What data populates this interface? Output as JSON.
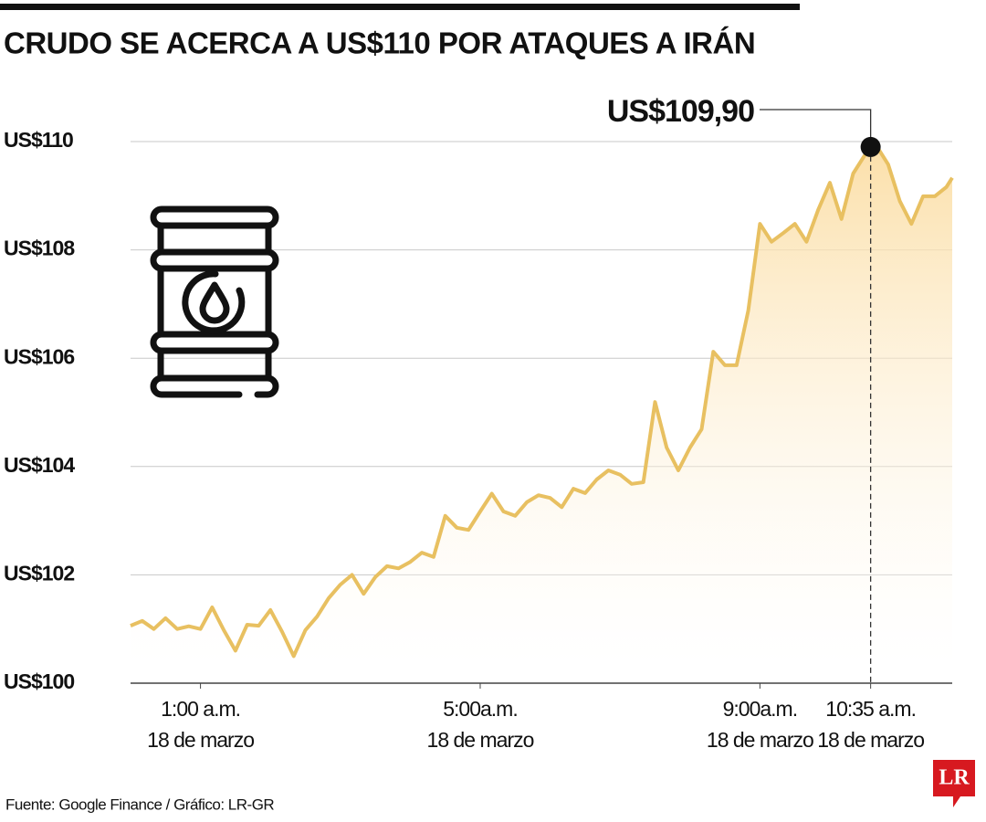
{
  "chart_data": {
    "type": "area",
    "title": "CRUDO SE ACERCA A US$110 POR ATAQUES A IRÁN",
    "source": "Fuente: Google Finance / Gráfico: LR-GR",
    "logo": "LR",
    "color": "#e8c061",
    "fill_color": "#fbdca0",
    "grid": true,
    "xlim": [
      0,
      705
    ],
    "ylim": [
      100,
      110
    ],
    "yticks": [
      {
        "value": 100,
        "label": "US$100"
      },
      {
        "value": 102,
        "label": "US$102"
      },
      {
        "value": 104,
        "label": "US$104"
      },
      {
        "value": 106,
        "label": "US$106"
      },
      {
        "value": 108,
        "label": "US$108"
      },
      {
        "value": 110,
        "label": "US$110"
      }
    ],
    "xticks": [
      {
        "value": 60,
        "label": [
          "1:00 a.m.",
          "18 de marzo"
        ]
      },
      {
        "value": 300,
        "label": [
          "5:00a.m.",
          "18 de marzo"
        ]
      },
      {
        "value": 540,
        "label": [
          "9:00a.m.",
          "18 de marzo"
        ]
      },
      {
        "value": 635,
        "label": [
          "10:35 a.m.",
          "18 de marzo"
        ]
      }
    ],
    "annotation": {
      "x": 635,
      "y": 109.9,
      "label": "US$109,90"
    },
    "x": [
      0,
      10,
      20,
      30,
      40,
      50,
      60,
      70,
      80,
      90,
      100,
      110,
      120,
      130,
      140,
      150,
      160,
      170,
      180,
      190,
      200,
      210,
      220,
      230,
      240,
      250,
      260,
      270,
      280,
      290,
      300,
      310,
      320,
      330,
      340,
      350,
      360,
      370,
      380,
      390,
      400,
      410,
      420,
      430,
      440,
      450,
      460,
      470,
      480,
      490,
      500,
      510,
      520,
      530,
      540,
      550,
      560,
      570,
      580,
      590,
      600,
      610,
      620,
      630,
      640,
      650,
      660,
      670,
      680,
      690,
      700,
      705
    ],
    "values": [
      101.06,
      101.15,
      101.0,
      101.2,
      101.0,
      101.05,
      101.0,
      101.4,
      100.98,
      100.6,
      101.08,
      101.06,
      101.35,
      100.95,
      100.5,
      100.98,
      101.23,
      101.57,
      101.82,
      102.0,
      101.65,
      101.96,
      102.16,
      102.12,
      102.24,
      102.41,
      102.33,
      103.09,
      102.87,
      102.83,
      103.17,
      103.5,
      103.17,
      103.09,
      103.34,
      103.47,
      103.42,
      103.25,
      103.59,
      103.51,
      103.76,
      103.93,
      103.85,
      103.68,
      103.71,
      105.19,
      104.35,
      103.93,
      104.35,
      104.69,
      106.12,
      105.87,
      105.87,
      106.88,
      108.48,
      108.15,
      108.31,
      108.48,
      108.15,
      108.74,
      109.24,
      108.57,
      109.41,
      109.75,
      109.92,
      109.58,
      108.9,
      108.48,
      108.99,
      108.99,
      109.16,
      109.33
    ]
  }
}
